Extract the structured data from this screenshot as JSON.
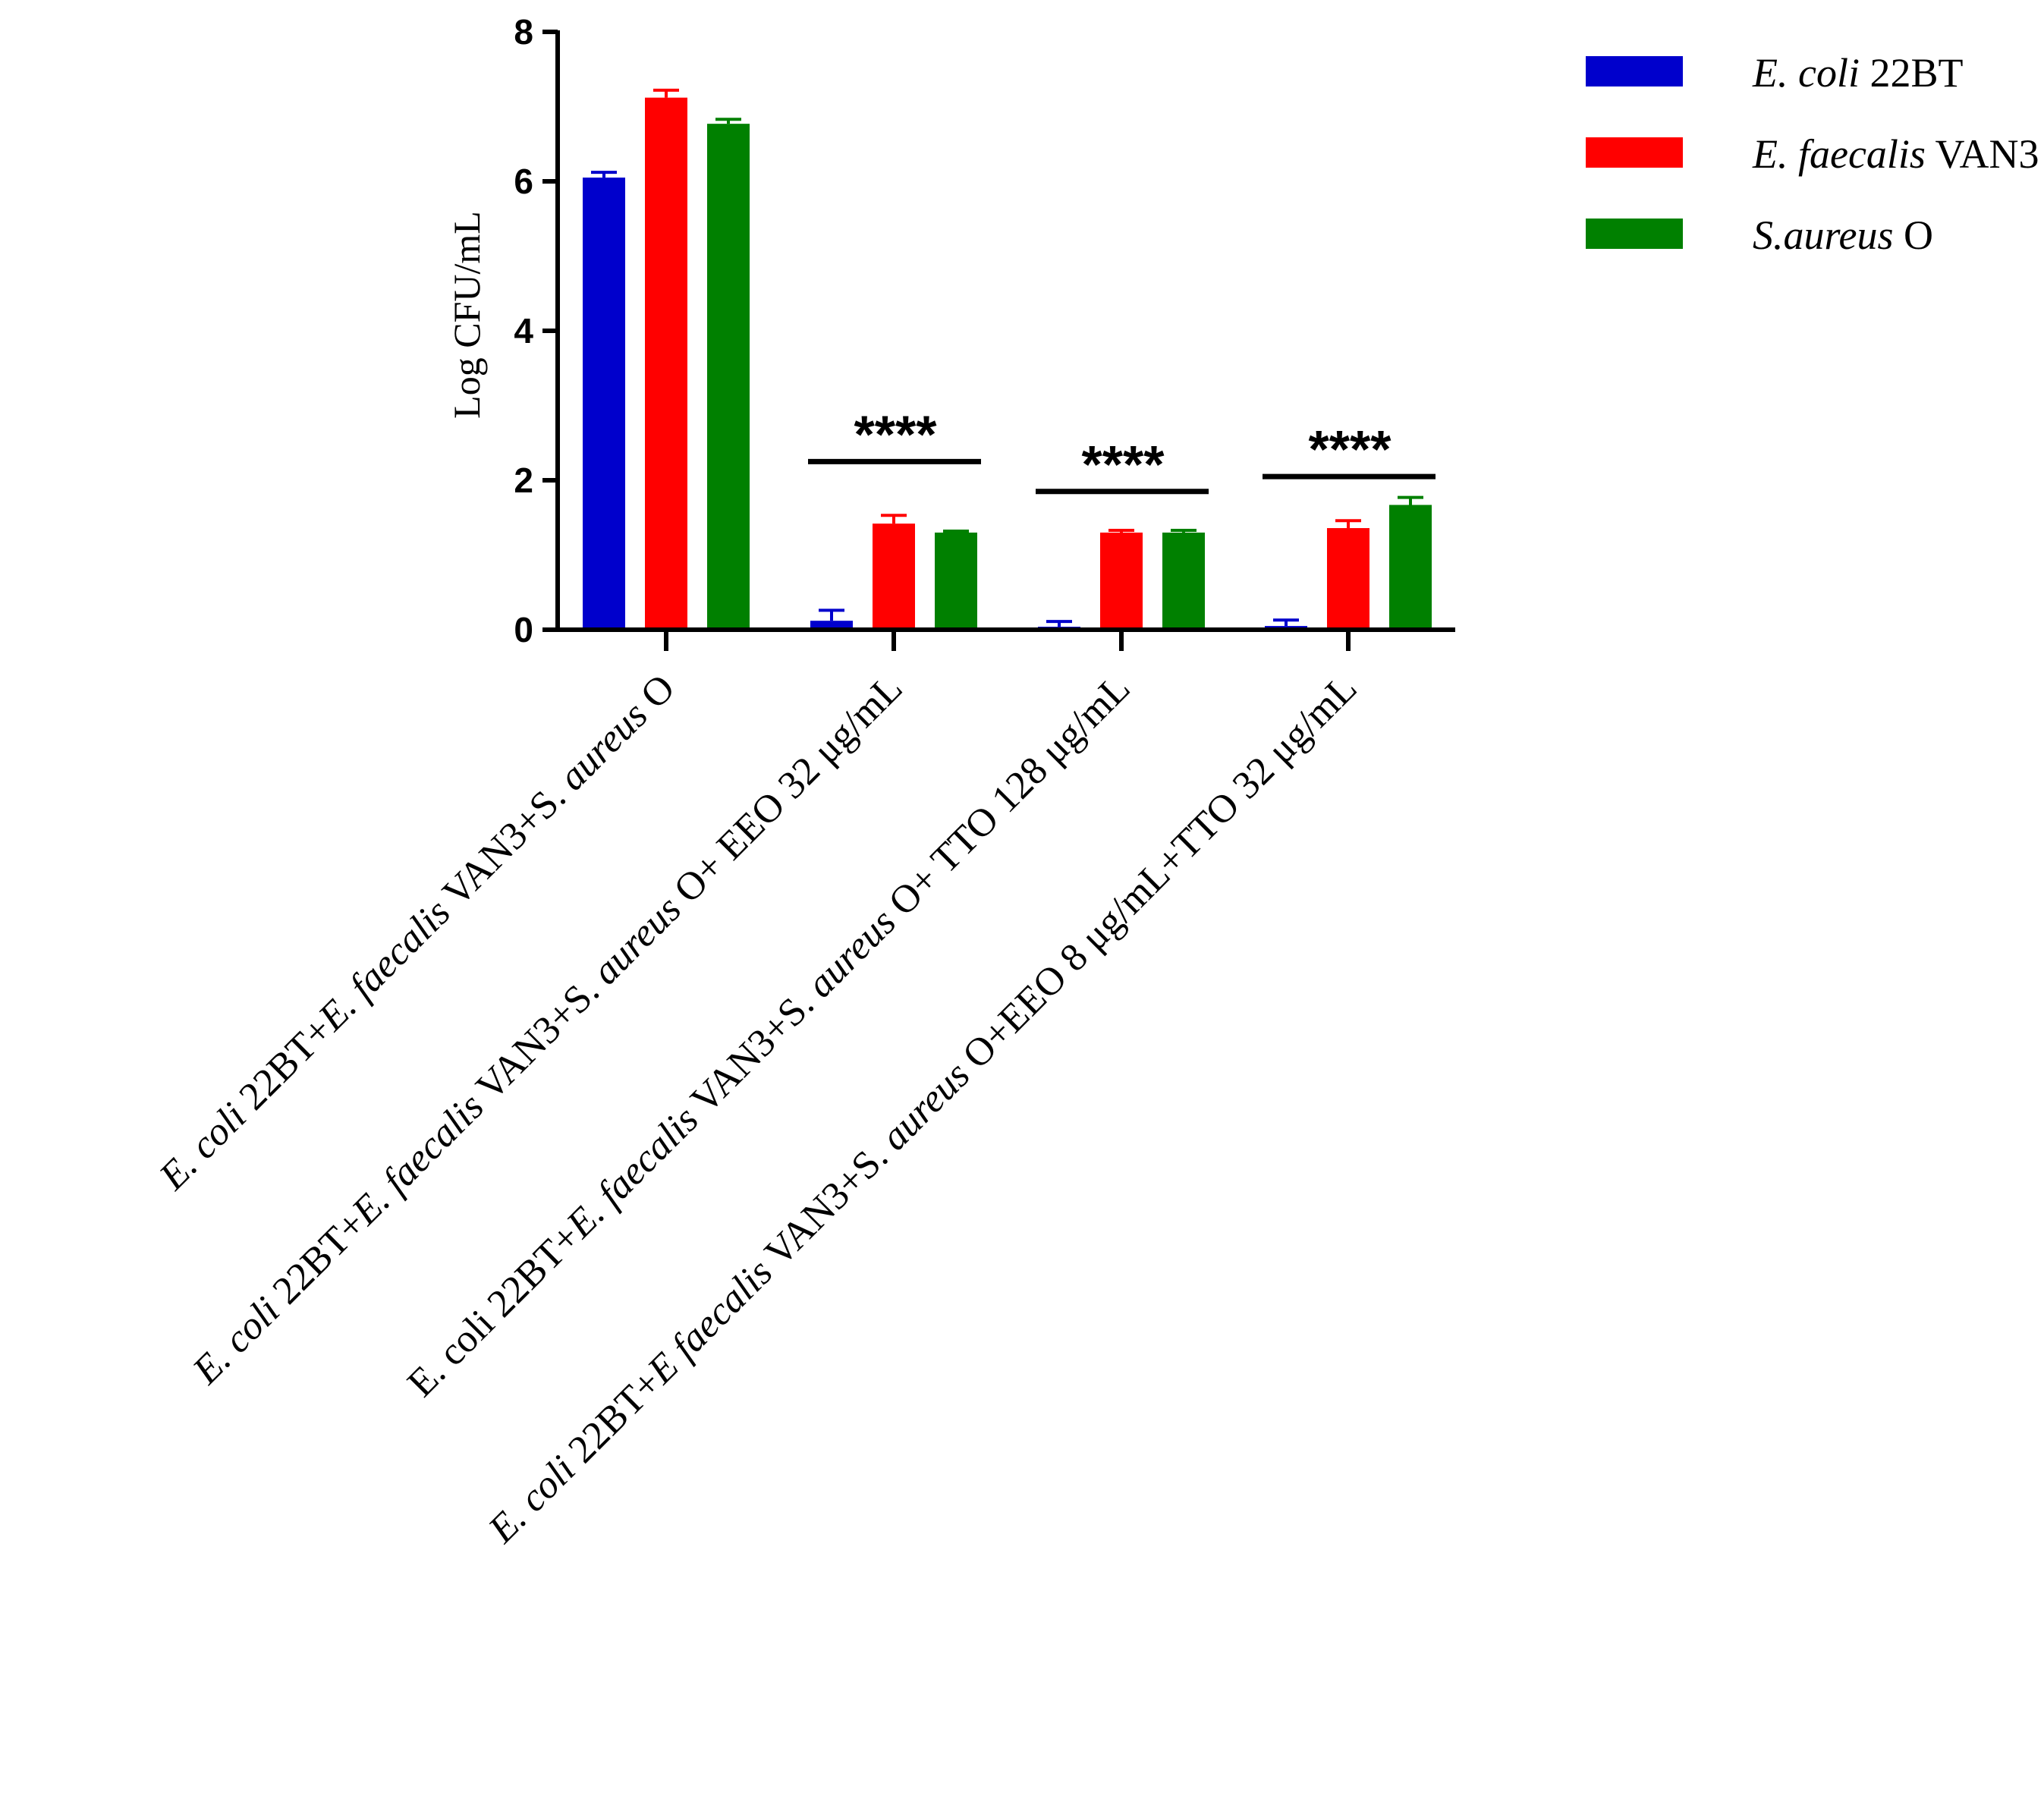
{
  "chart_data": {
    "type": "bar",
    "ylabel": "Log CFU/mL",
    "ylim": [
      0,
      8
    ],
    "yticks": [
      "0",
      "2",
      "4",
      "6",
      "8"
    ],
    "categories": [
      [
        {
          "t": "E. coli",
          "i": true
        },
        {
          "t": " 22BT+",
          "i": false
        },
        {
          "t": "E. faecalis",
          "i": true
        },
        {
          "t": " VAN3+S. ",
          "i": false
        },
        {
          "t": "aureus",
          "i": true
        },
        {
          "t": " O",
          "i": false
        }
      ],
      [
        {
          "t": "E. coli",
          "i": true
        },
        {
          "t": " 22BT+",
          "i": false
        },
        {
          "t": "E. faecalis",
          "i": true
        },
        {
          "t": " VAN3+S. ",
          "i": false
        },
        {
          "t": "aureus",
          "i": true
        },
        {
          "t": " O+ EEO 32 μg/mL",
          "i": false
        }
      ],
      [
        {
          "t": "E. coli",
          "i": false
        },
        {
          "t": " 22BT+",
          "i": false
        },
        {
          "t": "E. faecalis",
          "i": true
        },
        {
          "t": " VAN3+S. ",
          "i": false
        },
        {
          "t": "aureus",
          "i": true
        },
        {
          "t": " O+ TTO 128 μg/mL",
          "i": false
        }
      ],
      [
        {
          "t": "E. coli",
          "i": true
        },
        {
          "t": " 22BT+",
          "i": false
        },
        {
          "t": "E faecalis",
          "i": true
        },
        {
          "t": " VAN3+S. ",
          "i": false
        },
        {
          "t": "aureus",
          "i": true
        },
        {
          "t": " O+EEO 8 μg/mL+TTO 32 μg/mL",
          "i": false
        }
      ]
    ],
    "series": [
      {
        "name_italic": "E. coli",
        "name_plain": " 22BT",
        "color": "#0000cc",
        "values": [
          6.05,
          0.12,
          0.04,
          0.05
        ],
        "errors": [
          0.07,
          0.14,
          0.07,
          0.08
        ]
      },
      {
        "name_italic": "E. faecalis",
        "name_plain": " VAN3",
        "color": "#ff0000",
        "values": [
          7.12,
          1.42,
          1.3,
          1.36
        ],
        "errors": [
          0.1,
          0.11,
          0.03,
          0.1
        ]
      },
      {
        "name_italic": "S.aureus",
        "name_plain": " O",
        "color": "#008000",
        "values": [
          6.77,
          1.3,
          1.3,
          1.67
        ],
        "errors": [
          0.06,
          0.02,
          0.03,
          0.1
        ]
      }
    ],
    "significance": [
      {
        "group": 1,
        "label": "****",
        "level": 2.25
      },
      {
        "group": 2,
        "label": "****",
        "level": 1.85
      },
      {
        "group": 3,
        "label": "****",
        "level": 2.05
      }
    ],
    "legend_position": "top-right",
    "grid": false
  }
}
